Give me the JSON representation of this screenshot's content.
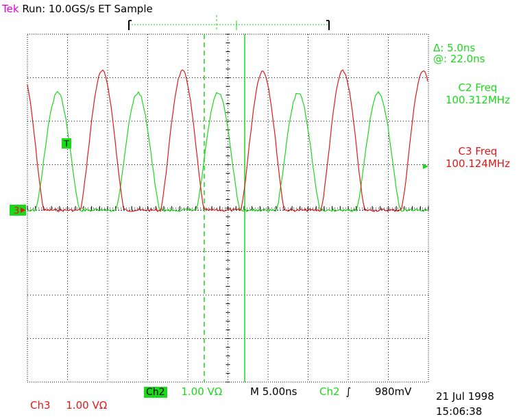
{
  "header": {
    "brand": "Tek",
    "status": "Run: 10.0GS/s ET Sample"
  },
  "measurements": {
    "delta": "Δ: 5.0ns",
    "at": "@: 22.0ns",
    "c2_label": "C2 Freq",
    "c2_value": "100.312MHz",
    "c3_label": "C3 Freq",
    "c3_value": "100.124MHz"
  },
  "markers": {
    "trigger": "T",
    "ch3_ground": "3"
  },
  "footer": {
    "ch2_label": "Ch2",
    "ch2_scale": "1.00 VΩ",
    "ch3_label": "Ch3",
    "ch3_scale": "1.00 VΩ",
    "timebase": "M 5.00ns",
    "trig_source": "Ch2",
    "trig_level": "980mV",
    "date": "21 Jul 1998",
    "time": "15:06:38"
  },
  "colors": {
    "ch2": "#19d919",
    "ch3": "#e01818",
    "brand": "#e000e0",
    "grid": "#000000"
  },
  "chart_data": {
    "type": "line",
    "xlabel": "",
    "ylabel": "",
    "x_divisions": 10,
    "y_divisions": 8,
    "series": [
      {
        "name": "Ch2",
        "frequency_mhz": 100.312,
        "volts_per_div": 1.0,
        "peak_div": 2.7,
        "baseline_div": 0.0
      },
      {
        "name": "Ch3",
        "frequency_mhz": 100.124,
        "volts_per_div": 1.0,
        "peak_div": 3.2,
        "baseline_div": 0.0
      }
    ]
  }
}
